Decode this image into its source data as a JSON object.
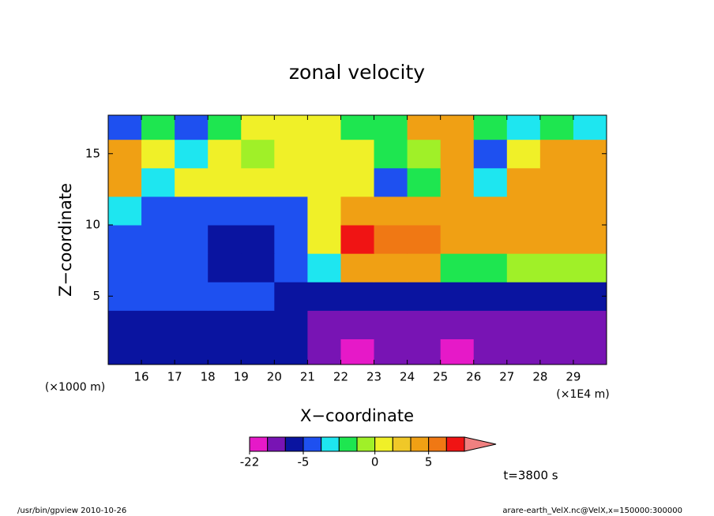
{
  "chart_data": {
    "type": "contour",
    "title": "zonal velocity",
    "xlabel": "X−coordinate",
    "ylabel": "Z−coordinate",
    "x_unit": "(×1E4 m)",
    "y_unit": "(×1000 m)",
    "time_label": "t=3800 s",
    "footer_left": "/usr/bin/gpview   2010-10-26",
    "footer_right": "arare-earth_VelX.nc@VelX,x=150000:300000",
    "xlim": [
      15,
      30
    ],
    "ylim": [
      0.2,
      17.7
    ],
    "xticks": [
      16,
      17,
      18,
      19,
      20,
      21,
      22,
      23,
      24,
      25,
      26,
      27,
      28,
      29
    ],
    "yticks": [
      5,
      10,
      15
    ],
    "x": [
      15.5,
      16.5,
      17.5,
      18.5,
      19.5,
      20.5,
      21.5,
      22.5,
      23.5,
      24.5,
      25.5,
      26.5,
      27.5,
      28.5,
      29.5
    ],
    "y": [
      1,
      3,
      5,
      7,
      9,
      11,
      13,
      15,
      17
    ],
    "z": [
      [
        -7,
        -7,
        -7,
        -7,
        -7,
        -7,
        -12,
        -18,
        -12,
        -12,
        -18,
        -12,
        -12,
        -12,
        -12
      ],
      [
        -7,
        -7,
        -7,
        -7,
        -7,
        -7,
        -12,
        -12,
        -12,
        -12,
        -12,
        -12,
        -12,
        -12,
        -12
      ],
      [
        -4,
        -4,
        -4,
        -4,
        -4,
        -7,
        -7,
        -7,
        -7,
        -7,
        -7,
        -7,
        -7,
        -7,
        -7
      ],
      [
        -4,
        -4,
        -4,
        -7,
        -7,
        -4,
        -2.5,
        3,
        3,
        3,
        -1.5,
        -1.5,
        -0.5,
        -0.5,
        -0.5
      ],
      [
        -4,
        -4,
        -4,
        -7,
        -7,
        -4,
        0.5,
        12,
        7,
        7,
        3,
        3,
        3,
        3,
        3
      ],
      [
        -2.5,
        -4,
        -4,
        -4,
        -4,
        -4,
        0.5,
        3,
        3,
        3,
        3,
        3,
        3,
        3,
        3
      ],
      [
        3,
        -2.5,
        0.5,
        0.5,
        0.5,
        0.5,
        0.5,
        0.5,
        -4,
        -1.5,
        3,
        -2.5,
        3,
        3,
        3
      ],
      [
        3,
        0.5,
        -2.5,
        0.5,
        -0.5,
        0.5,
        0.5,
        0.5,
        -1.5,
        -0.5,
        3,
        -4,
        0.5,
        3,
        3
      ],
      [
        -4,
        -1.5,
        -4,
        -1.5,
        0.5,
        0.5,
        0.5,
        -1.5,
        -1.5,
        3,
        3,
        -1.5,
        -2.5,
        -1.5,
        -2.5
      ]
    ],
    "levels": [
      -22,
      -15,
      -10,
      -5,
      -3,
      -2,
      -1,
      0,
      1,
      2,
      5,
      10,
      15
    ],
    "colors": [
      "#e619c8",
      "#7814b4",
      "#0a14a0",
      "#1e50f0",
      "#1ee6f0",
      "#1ee650",
      "#a0f028",
      "#f0f028",
      "#f0c828",
      "#f0a014",
      "#f07814",
      "#f01414"
    ],
    "over_color": "#f08080",
    "colorbar_ticks": [
      -22,
      -5,
      0,
      5
    ]
  }
}
